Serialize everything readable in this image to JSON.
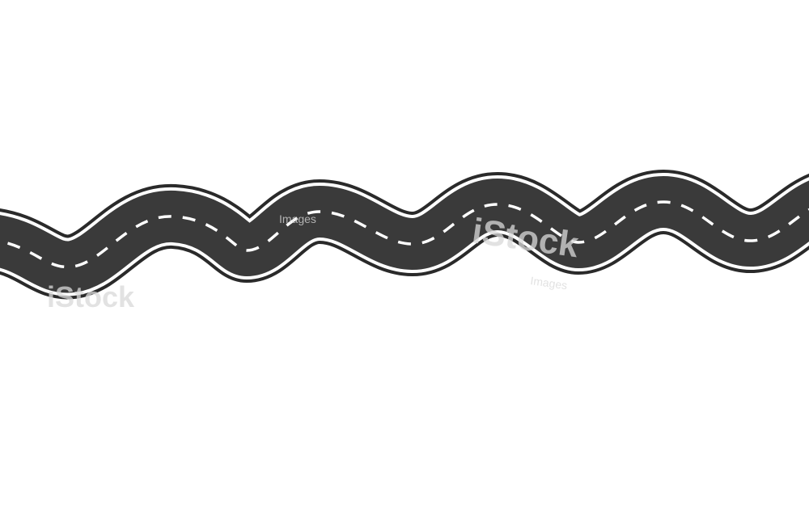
{
  "illustration": {
    "subject": "winding-road",
    "colors": {
      "background": "#ffffff",
      "asphalt": "#3a3a3a",
      "edge_outline": "#2a2a2a",
      "edge_line": "#ffffff",
      "center_dash": "#ffffff"
    }
  },
  "watermark": {
    "brand": "iStock",
    "subtext": "Images",
    "color": "#d9d9d9"
  }
}
